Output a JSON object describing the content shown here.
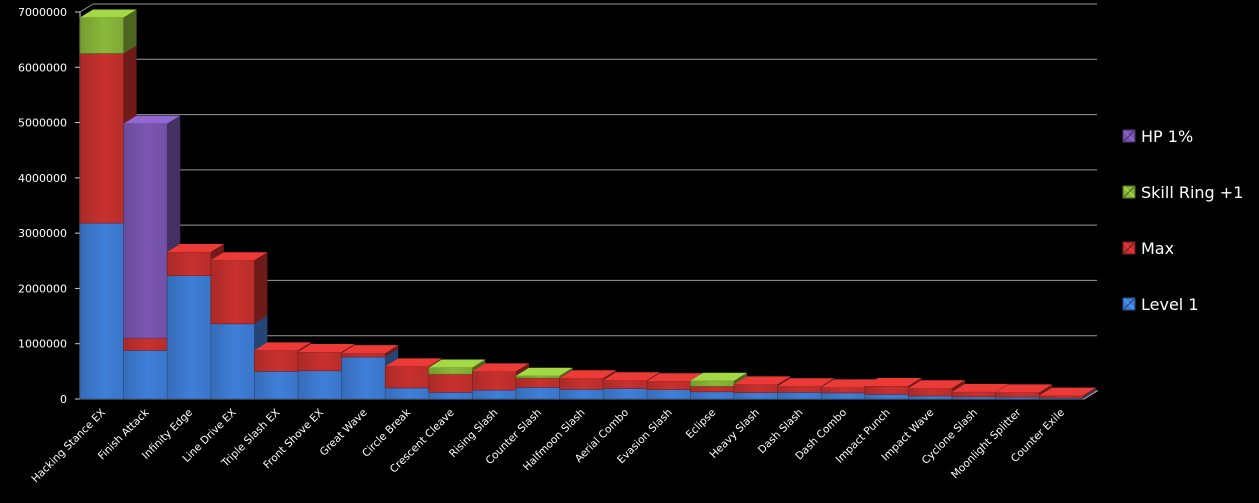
{
  "chart_data": {
    "type": "bar",
    "stacked": true,
    "style": "3d",
    "ylim": [
      0,
      7000000
    ],
    "yticks": [
      "0",
      "1000000",
      "2000000",
      "3000000",
      "4000000",
      "5000000",
      "6000000",
      "7000000"
    ],
    "grid": true,
    "legend_position": "right",
    "categories": [
      "Hacking Stance EX",
      "Finish Attack",
      "Infinity Edge",
      "Line Drive EX",
      "Triple Slash EX",
      "Front Shove EX",
      "Great Wave",
      "Circle Break",
      "Crescent Cleave",
      "Rising Slash",
      "Counter Slash",
      "Halfmoon Slash",
      "Aerial Combo",
      "Evasion Slash",
      "Eclipse",
      "Heavy Slash",
      "Dash Slash",
      "Dash Combo",
      "Impact Punch",
      "Impact Wave",
      "Cyclone Slash",
      "Moonlight Splitter",
      "Counter Exile"
    ],
    "series": [
      {
        "name": "Level 1",
        "color": "#3f7fd9",
        "values": [
          3180000,
          880000,
          2230000,
          1360000,
          500000,
          510000,
          760000,
          200000,
          120000,
          160000,
          210000,
          175000,
          190000,
          170000,
          130000,
          115000,
          120000,
          110000,
          85000,
          55000,
          40000,
          35000,
          20000
        ]
      },
      {
        "name": "Max",
        "color": "#c8312e",
        "values": [
          3070000,
          220000,
          430000,
          1150000,
          380000,
          340000,
          70000,
          390000,
          330000,
          340000,
          170000,
          200000,
          150000,
          150000,
          100000,
          150000,
          110000,
          100000,
          150000,
          140000,
          90000,
          85000,
          40000
        ]
      },
      {
        "name": "Skill Ring +1",
        "color": "#8ab83a",
        "values": [
          650000,
          0,
          0,
          0,
          0,
          0,
          0,
          0,
          120000,
          0,
          40000,
          0,
          0,
          0,
          100000,
          0,
          0,
          0,
          0,
          0,
          0,
          0,
          0
        ]
      },
      {
        "name": "HP 1%",
        "color": "#7b57b3",
        "values": [
          0,
          3880000,
          0,
          0,
          0,
          0,
          0,
          0,
          0,
          0,
          0,
          0,
          0,
          0,
          0,
          0,
          0,
          0,
          0,
          0,
          0,
          0,
          0
        ]
      }
    ],
    "legend_order": [
      "HP 1%",
      "Skill Ring +1",
      "Max",
      "Level 1"
    ]
  }
}
